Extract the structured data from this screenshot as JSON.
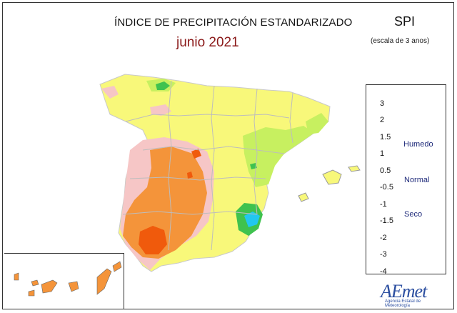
{
  "header": {
    "title": "ÍNDICE DE PRECIPITACIÓN ESTANDARIZADO",
    "subtitle": "junio 2021",
    "index_name": "SPI",
    "index_scale": "(escala de 3 anos)"
  },
  "legend": {
    "ticks": [
      "3",
      "2",
      "1.5",
      "1",
      "0.5",
      "-0.5",
      "-1",
      "-1.5",
      "-2",
      "-3",
      "-4"
    ],
    "colors": [
      "#6a0dd8",
      "#2f4ff0",
      "#22c7f0",
      "#3fc24f",
      "#c7f060",
      "#f8f87a",
      "#f6c6c6",
      "#f4943a",
      "#f05a0c",
      "#f51a12",
      "#d040f0"
    ],
    "labels": {
      "humid": "Humedo",
      "normal": "Normal",
      "dry": "Seco"
    },
    "arrow_colors": {
      "humid": "#1a2a8a",
      "dry": "#7a0e0e"
    }
  },
  "map": {
    "region": "Iberian Peninsula, Balearic and Canary Islands",
    "dominant_class": "-0.5 to 0.5 (Normal)",
    "southwest_class": "-1.5 to -1",
    "southwest_core_class": "-2 to -1.5",
    "southeast_wet_class": "1 to 1.5",
    "southeast_core_class": "1.5 to 2",
    "canary_class": "-1.5 to -1"
  },
  "logo": {
    "main": "AEmet",
    "sub": "Agencia Estatal de Meteorología"
  }
}
